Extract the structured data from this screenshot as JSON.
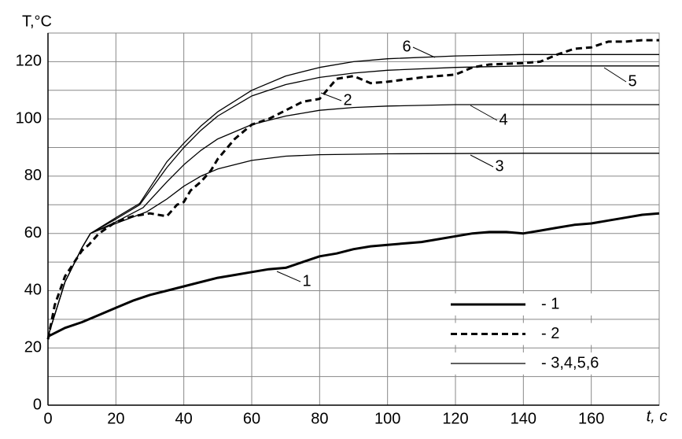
{
  "chart_data": {
    "type": "line",
    "y_label": "T,°C",
    "x_label": "t, c",
    "xlim": [
      0,
      180
    ],
    "ylim": [
      0,
      130
    ],
    "xticks": [
      0,
      20,
      40,
      60,
      80,
      100,
      120,
      140,
      160
    ],
    "yticks": [
      0,
      20,
      40,
      60,
      80,
      100,
      120
    ],
    "y_minor_ticks": [
      10,
      30,
      50,
      70,
      90,
      110
    ],
    "grid": true,
    "legend": [
      "- 1",
      "- 2",
      "- 3,4,5,6"
    ],
    "series": [
      {
        "name": "1",
        "color": "#000000",
        "width": 3,
        "dash": false,
        "x": [
          0,
          5,
          10,
          15,
          20,
          25,
          30,
          35,
          40,
          45,
          50,
          55,
          60,
          65,
          70,
          75,
          80,
          85,
          90,
          95,
          100,
          105,
          110,
          115,
          120,
          125,
          130,
          135,
          140,
          145,
          150,
          155,
          160,
          165,
          170,
          175,
          180
        ],
        "values": [
          24,
          27,
          29,
          31.5,
          34,
          36.5,
          38.5,
          40,
          41.5,
          43,
          44.5,
          45.5,
          46.5,
          47.5,
          48,
          50,
          52,
          53,
          54.5,
          55.5,
          56,
          56.5,
          57,
          58,
          59,
          60,
          60.5,
          60.5,
          60,
          61,
          62,
          63,
          63.5,
          64.5,
          65.5,
          66.5,
          67
        ]
      },
      {
        "name": "2",
        "color": "#000000",
        "width": 3,
        "dash": true,
        "x": [
          0,
          2,
          5,
          10,
          12,
          15,
          20,
          25,
          30,
          35,
          38,
          40,
          42,
          45,
          48,
          50,
          55,
          60,
          65,
          70,
          75,
          80,
          85,
          90,
          95,
          100,
          110,
          120,
          125,
          130,
          140,
          145,
          150,
          155,
          160,
          165,
          170,
          175,
          180
        ],
        "values": [
          23,
          35,
          45,
          54,
          56,
          60,
          64,
          66,
          67,
          66,
          70,
          71,
          75,
          78,
          82,
          86,
          93,
          98,
          100,
          103,
          106,
          107,
          114,
          115,
          112.5,
          113,
          114.5,
          115.5,
          118,
          119,
          119.5,
          120,
          122.5,
          124.5,
          125,
          127,
          127,
          127.5,
          127.5
        ]
      },
      {
        "name": "3",
        "color": "#000000",
        "width": 1.3,
        "dash": false,
        "x": [
          0,
          5,
          10,
          12.5,
          20,
          29,
          35,
          40,
          45,
          50,
          60,
          70,
          80,
          100,
          140,
          180
        ],
        "values": [
          24,
          43,
          55,
          60,
          63.5,
          67.5,
          72,
          76.5,
          80,
          82.5,
          85.5,
          87,
          87.5,
          87.8,
          88,
          88
        ]
      },
      {
        "name": "4",
        "color": "#000000",
        "width": 1.3,
        "dash": false,
        "x": [
          0,
          5,
          10,
          12.5,
          20,
          28,
          35,
          40,
          45,
          50,
          60,
          70,
          80,
          90,
          100,
          120,
          180
        ],
        "values": [
          24,
          43,
          55,
          60,
          64,
          69,
          78,
          84,
          89,
          93,
          98,
          101,
          103,
          104,
          104.5,
          105,
          105
        ]
      },
      {
        "name": "5",
        "color": "#000000",
        "width": 1.3,
        "dash": false,
        "x": [
          0,
          5,
          10,
          12.5,
          20,
          27,
          35,
          40,
          45,
          50,
          60,
          70,
          80,
          90,
          100,
          120,
          140,
          180
        ],
        "values": [
          24,
          43,
          55,
          60,
          65,
          70,
          83,
          90,
          96,
          101,
          108,
          112,
          114.5,
          116,
          117,
          118,
          118.5,
          118.5
        ]
      },
      {
        "name": "6",
        "color": "#000000",
        "width": 1.3,
        "dash": false,
        "x": [
          0,
          5,
          10,
          12.5,
          20,
          27,
          35,
          40,
          45,
          50,
          60,
          70,
          80,
          90,
          100,
          120,
          140,
          180
        ],
        "values": [
          24,
          43,
          55,
          60,
          65.5,
          70.5,
          85,
          91.5,
          97.5,
          102.5,
          110,
          115,
          118,
          120,
          121,
          122,
          122.5,
          122.5
        ]
      }
    ]
  }
}
